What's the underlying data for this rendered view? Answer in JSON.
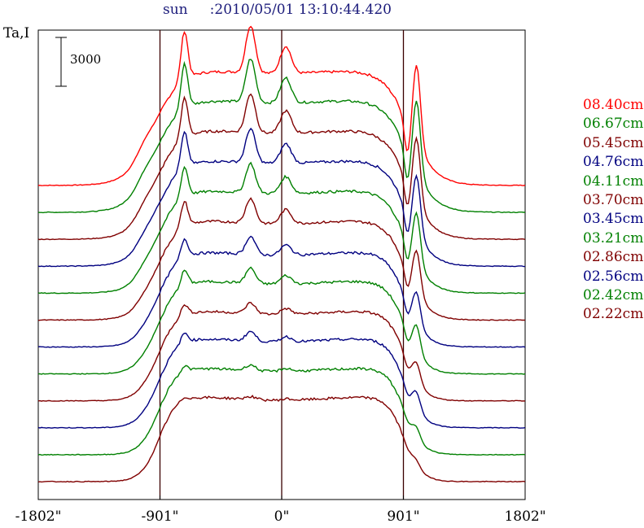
{
  "header": {
    "object": "sun",
    "timestamp": ":2010/05/01 13:10:44.420"
  },
  "chart_data": {
    "type": "line",
    "title": "sun     :2010/05/01 13:10:44.420",
    "ylabel": "Ta,I",
    "scale_bar": "3000",
    "x_ticks": [
      "-1802\"",
      "-901\"",
      "0\"",
      "901\"",
      "1802\""
    ],
    "x_tick_values": [
      -1802,
      -901,
      0,
      901,
      1802
    ],
    "xlim": [
      -1802,
      1802
    ],
    "vertical_lines_at": [
      -901,
      0,
      901
    ],
    "grid": false,
    "legend_position": "right",
    "series": [
      {
        "name": "08.40cm",
        "color": "#ff0000",
        "peak": 1.0
      },
      {
        "name": "06.67cm",
        "color": "#008000",
        "peak": 0.92
      },
      {
        "name": "05.45cm",
        "color": "#800000",
        "peak": 0.82
      },
      {
        "name": "04.76cm",
        "color": "#000080",
        "peak": 0.72
      },
      {
        "name": "04.11cm",
        "color": "#008000",
        "peak": 0.62
      },
      {
        "name": "03.70cm",
        "color": "#800000",
        "peak": 0.52
      },
      {
        "name": "03.45cm",
        "color": "#000080",
        "peak": 0.38
      },
      {
        "name": "03.21cm",
        "color": "#008000",
        "peak": 0.32
      },
      {
        "name": "02.86cm",
        "color": "#800000",
        "peak": 0.22
      },
      {
        "name": "02.56cm",
        "color": "#000080",
        "peak": 0.2
      },
      {
        "name": "02.42cm",
        "color": "#008000",
        "peak": 0.12
      },
      {
        "name": "02.22cm",
        "color": "#800000",
        "peak": 0.06
      }
    ]
  }
}
